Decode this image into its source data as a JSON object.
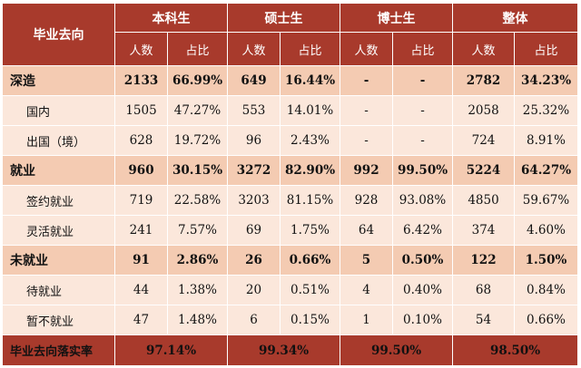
{
  "header": {
    "corner_label": "毕业去向",
    "groups": [
      "本科生",
      "硕士生",
      "博士生",
      "整体"
    ],
    "count_label": "人数",
    "ratio_label": "占比"
  },
  "rows": [
    {
      "label": "深造",
      "kind": "main",
      "values": [
        "2133",
        "66.99%",
        "649",
        "16.44%",
        "-",
        "-",
        "2782",
        "34.23%"
      ]
    },
    {
      "label": "国内",
      "kind": "sub",
      "values": [
        "1505",
        "47.27%",
        "553",
        "14.01%",
        "-",
        "-",
        "2058",
        "25.32%"
      ]
    },
    {
      "label": "出国（境）",
      "kind": "sub",
      "values": [
        "628",
        "19.72%",
        "96",
        "2.43%",
        "-",
        "-",
        "724",
        "8.91%"
      ]
    },
    {
      "label": "就业",
      "kind": "main",
      "values": [
        "960",
        "30.15%",
        "3272",
        "82.90%",
        "992",
        "99.50%",
        "5224",
        "64.27%"
      ]
    },
    {
      "label": "签约就业",
      "kind": "sub",
      "values": [
        "719",
        "22.58%",
        "3203",
        "81.15%",
        "928",
        "93.08%",
        "4850",
        "59.67%"
      ]
    },
    {
      "label": "灵活就业",
      "kind": "sub",
      "values": [
        "241",
        "7.57%",
        "69",
        "1.75%",
        "64",
        "6.42%",
        "374",
        "4.60%"
      ]
    },
    {
      "label": "未就业",
      "kind": "main",
      "values": [
        "91",
        "2.86%",
        "26",
        "0.66%",
        "5",
        "0.50%",
        "122",
        "1.50%"
      ]
    },
    {
      "label": "待就业",
      "kind": "sub",
      "values": [
        "44",
        "1.38%",
        "20",
        "0.51%",
        "4",
        "0.40%",
        "68",
        "0.84%"
      ]
    },
    {
      "label": "暂不就业",
      "kind": "sub",
      "values": [
        "47",
        "1.48%",
        "6",
        "0.15%",
        "1",
        "0.10%",
        "54",
        "0.66%"
      ]
    }
  ],
  "footer": {
    "label": "毕业去向落实率",
    "rates": [
      "97.14%",
      "99.34%",
      "99.50%",
      "98.50%"
    ]
  },
  "colors": {
    "header_bg": "#a83a2c",
    "main_row_bg": "#f4cbb2",
    "sub_row_bg": "#fbe7db"
  }
}
